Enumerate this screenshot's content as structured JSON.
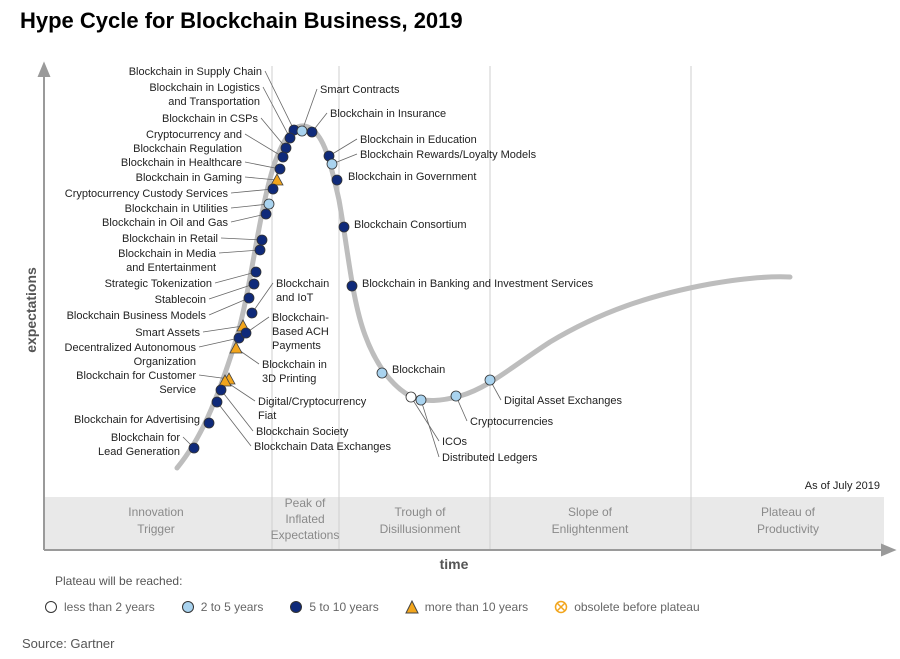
{
  "title": "Hype Cycle for Blockchain Business, 2019",
  "axis": {
    "y_label": "expectations",
    "x_label": "time"
  },
  "as_of": "As of July 2019",
  "phases": [
    "Innovation Trigger",
    "Peak of Inflated Expectations",
    "Trough of Disillusionment",
    "Slope of Enlightenment",
    "Plateau of Productivity"
  ],
  "legend": {
    "heading": "Plateau will be reached:",
    "items": [
      {
        "key": "lt2",
        "label": "less than 2 years",
        "marker": "circle",
        "color": "#ffffff"
      },
      {
        "key": "2to5",
        "label": "2 to 5 years",
        "marker": "circle",
        "color": "#a9d3ef"
      },
      {
        "key": "5to10",
        "label": "5 to 10 years",
        "marker": "circle",
        "color": "#0f2a7a"
      },
      {
        "key": "gt10",
        "label": "more than 10 years",
        "marker": "triangle",
        "color": "#f2a51c"
      },
      {
        "key": "obs",
        "label": "obsolete before plateau",
        "marker": "crossed-circle",
        "color": "#f2a51c"
      }
    ]
  },
  "source": "Source: Gartner",
  "chart_data": {
    "type": "scatter",
    "technologies": [
      {
        "name": "Blockchain in Supply Chain",
        "category": "5to10"
      },
      {
        "name": "Blockchain in Logistics and Transportation",
        "category": "5to10"
      },
      {
        "name": "Blockchain in CSPs",
        "category": "5to10"
      },
      {
        "name": "Cryptocurrency and Blockchain Regulation",
        "category": "5to10"
      },
      {
        "name": "Blockchain in Healthcare",
        "category": "5to10"
      },
      {
        "name": "Blockchain in Gaming",
        "category": "gt10"
      },
      {
        "name": "Cryptocurrency Custody Services",
        "category": "5to10"
      },
      {
        "name": "Blockchain in Utilities",
        "category": "2to5"
      },
      {
        "name": "Blockchain in Oil and Gas",
        "category": "5to10"
      },
      {
        "name": "Blockchain in Retail",
        "category": "5to10"
      },
      {
        "name": "Blockchain in Media and Entertainment",
        "category": "5to10"
      },
      {
        "name": "Strategic Tokenization",
        "category": "5to10"
      },
      {
        "name": "Stablecoin",
        "category": "5to10"
      },
      {
        "name": "Blockchain Business Models",
        "category": "5to10"
      },
      {
        "name": "Smart Assets",
        "category": "gt10"
      },
      {
        "name": "Decentralized Autonomous Organization",
        "category": "5to10"
      },
      {
        "name": "Blockchain for Customer Service",
        "category": "gt10"
      },
      {
        "name": "Blockchain for Advertising",
        "category": "5to10"
      },
      {
        "name": "Blockchain for Lead Generation",
        "category": "5to10"
      },
      {
        "name": "Blockchain and IoT",
        "category": "5to10"
      },
      {
        "name": "Blockchain-Based ACH Payments",
        "category": "5to10"
      },
      {
        "name": "Blockchain in 3D Printing",
        "category": "gt10"
      },
      {
        "name": "Digital/Cryptocurrency Fiat",
        "category": "gt10"
      },
      {
        "name": "Blockchain Society",
        "category": "5to10"
      },
      {
        "name": "Blockchain Data Exchanges",
        "category": "5to10"
      },
      {
        "name": "Smart Contracts",
        "category": "2to5"
      },
      {
        "name": "Blockchain in Insurance",
        "category": "5to10"
      },
      {
        "name": "Blockchain in Education",
        "category": "5to10"
      },
      {
        "name": "Blockchain Rewards/Loyalty Models",
        "category": "2to5"
      },
      {
        "name": "Blockchain in Government",
        "category": "5to10"
      },
      {
        "name": "Blockchain Consortium",
        "category": "5to10"
      },
      {
        "name": "Blockchain in Banking and Investment Services",
        "category": "5to10"
      },
      {
        "name": "Blockchain",
        "category": "2to5"
      },
      {
        "name": "ICOs",
        "category": "lt2"
      },
      {
        "name": "Distributed Ledgers",
        "category": "2to5"
      },
      {
        "name": "Cryptocurrencies",
        "category": "2to5"
      },
      {
        "name": "Digital Asset Exchanges",
        "category": "2to5"
      }
    ]
  }
}
